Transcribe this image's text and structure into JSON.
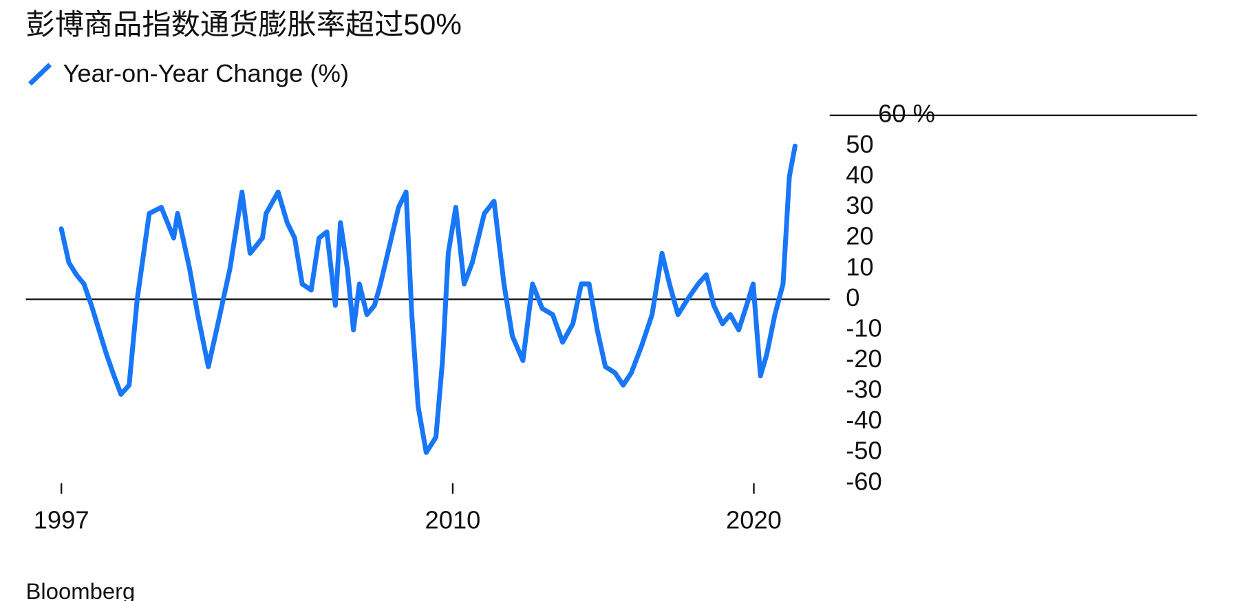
{
  "chart_data": {
    "type": "line",
    "title": "彭博商品指数通货膨胀率超过50%",
    "source": "Bloomberg",
    "x": [
      1997.0,
      1997.25,
      1997.5,
      1997.75,
      1998.0,
      1998.25,
      1998.5,
      1998.75,
      1998.98,
      1999.25,
      1999.52,
      1999.92,
      2000.32,
      2000.73,
      2000.86,
      2001.26,
      2001.53,
      2001.88,
      2002.2,
      2002.6,
      2003.0,
      2003.27,
      2003.68,
      2003.8,
      2004.2,
      2004.5,
      2004.75,
      2005.0,
      2005.3,
      2005.56,
      2005.82,
      2006.1,
      2006.27,
      2006.5,
      2006.7,
      2006.9,
      2007.15,
      2007.4,
      2007.6,
      2007.96,
      2008.2,
      2008.45,
      2008.64,
      2008.85,
      2009.12,
      2009.44,
      2009.66,
      2009.85,
      2010.1,
      2010.38,
      2010.65,
      2011.05,
      2011.37,
      2011.7,
      2011.98,
      2012.33,
      2012.65,
      2012.97,
      2013.32,
      2013.65,
      2013.99,
      2014.27,
      2014.53,
      2014.8,
      2015.07,
      2015.39,
      2015.66,
      2015.93,
      2016.28,
      2016.62,
      2016.95,
      2017.2,
      2017.48,
      2017.8,
      2018.15,
      2018.42,
      2018.67,
      2018.96,
      2019.22,
      2019.5,
      2019.76,
      2019.98,
      2020.22,
      2020.43,
      2020.7,
      2020.97,
      2021.18,
      2021.37
    ],
    "series": [
      {
        "name": "Year-on-Year Change (%)",
        "color": "#1877f7",
        "values": [
          23,
          12,
          8,
          5,
          -2,
          -10,
          -18,
          -25,
          -31,
          -28,
          0,
          28,
          30,
          20,
          28,
          10,
          -5,
          -22,
          -8,
          10,
          35,
          15,
          20,
          28,
          35,
          25,
          20,
          5,
          3,
          20,
          22,
          -2,
          25,
          10,
          -10,
          5,
          -5,
          -2,
          5,
          20,
          30,
          35,
          -5,
          -35,
          -50,
          -45,
          -20,
          15,
          30,
          5,
          12,
          28,
          32,
          5,
          -12,
          -20,
          5,
          -3,
          -5,
          -14,
          -8,
          5,
          5,
          -10,
          -22,
          -24,
          -28,
          -24,
          -15,
          -5,
          15,
          5,
          -5,
          0,
          5,
          8,
          -2,
          -8,
          -5,
          -10,
          -2,
          5,
          -25,
          -18,
          -5,
          5,
          40,
          50
        ]
      }
    ],
    "xlim": [
      1995.82,
      2022.52
    ],
    "xticks": [
      1997,
      2010,
      2020
    ],
    "ylim": [
      -60,
      60
    ],
    "yticks": [
      -60,
      -50,
      -40,
      -30,
      -20,
      -10,
      0,
      10,
      20,
      30,
      40,
      50,
      {
        "value": 60,
        "label": "60 %"
      }
    ]
  }
}
